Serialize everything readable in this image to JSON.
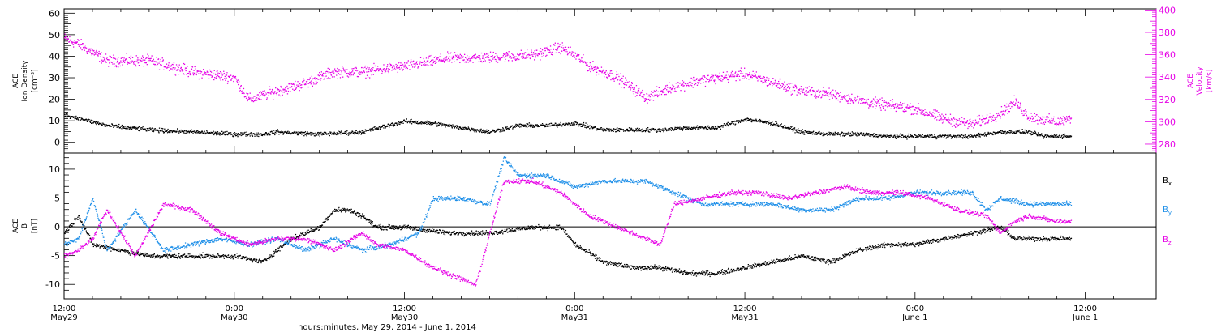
{
  "chart_data": [
    {
      "type": "scatter",
      "xlabel": "hours:minutes, May 29, 2014 - June  1, 2014",
      "x_ticks": [
        {
          "time": "12:00",
          "date": "May29",
          "hours": 0
        },
        {
          "time": "0:00",
          "date": "May30",
          "hours": 12
        },
        {
          "time": "12:00",
          "date": "May30",
          "hours": 24
        },
        {
          "time": "0:00",
          "date": "May31",
          "hours": 36
        },
        {
          "time": "12:00",
          "date": "May31",
          "hours": 48
        },
        {
          "time": "0:00",
          "date": "June 1",
          "hours": 60
        },
        {
          "time": "12:00",
          "date": "June 1",
          "hours": 72
        }
      ],
      "xlim": [
        "2014-05-29 12:00",
        "2014-06-01 17:00"
      ],
      "left_axis": {
        "label_lines": [
          "ACE",
          "Ion Density",
          "[cm⁻³]"
        ],
        "ylim": [
          -5,
          62
        ],
        "ticks": [
          0,
          10,
          20,
          30,
          40,
          50,
          60
        ],
        "color": "#000000"
      },
      "right_axis": {
        "label_lines": [
          "ACE",
          "Velocity",
          "[km/s]"
        ],
        "ylim": [
          272,
          401
        ],
        "ticks": [
          280,
          300,
          320,
          340,
          360,
          380,
          400
        ],
        "color": "#e600e6"
      },
      "series": [
        {
          "axis": "left",
          "color": "#000000",
          "points": [
            [
              0,
              13
            ],
            [
              3,
              8
            ],
            [
              6,
              6
            ],
            [
              9,
              5
            ],
            [
              12,
              4
            ],
            [
              14,
              4
            ],
            [
              15,
              5
            ],
            [
              18,
              4
            ],
            [
              21,
              5
            ],
            [
              24,
              10
            ],
            [
              26,
              9
            ],
            [
              28,
              7
            ],
            [
              30,
              5
            ],
            [
              32,
              8
            ],
            [
              34,
              8
            ],
            [
              36,
              9
            ],
            [
              38,
              6
            ],
            [
              40,
              6
            ],
            [
              42,
              6
            ],
            [
              44,
              7
            ],
            [
              46,
              7
            ],
            [
              48,
              11
            ],
            [
              50,
              9
            ],
            [
              52,
              5
            ],
            [
              54,
              4
            ],
            [
              56,
              4
            ],
            [
              58,
              3
            ],
            [
              60,
              3
            ],
            [
              62,
              3
            ],
            [
              64,
              3
            ],
            [
              66,
              5
            ],
            [
              68,
              5
            ],
            [
              69,
              3
            ],
            [
              71,
              3
            ]
          ]
        },
        {
          "axis": "right",
          "color": "#e600e6",
          "points": [
            [
              0,
              375
            ],
            [
              1,
              370
            ],
            [
              3,
              355
            ],
            [
              6,
              355
            ],
            [
              9,
              345
            ],
            [
              12,
              340
            ],
            [
              13,
              320
            ],
            [
              15,
              328
            ],
            [
              17,
              335
            ],
            [
              19,
              345
            ],
            [
              21,
              345
            ],
            [
              24,
              350
            ],
            [
              27,
              357
            ],
            [
              30,
              358
            ],
            [
              33,
              360
            ],
            [
              35,
              367
            ],
            [
              36,
              360
            ],
            [
              37,
              350
            ],
            [
              39,
              340
            ],
            [
              41,
              322
            ],
            [
              43,
              332
            ],
            [
              45,
              338
            ],
            [
              48,
              343
            ],
            [
              50,
              335
            ],
            [
              52,
              328
            ],
            [
              54,
              325
            ],
            [
              57,
              317
            ],
            [
              60,
              312
            ],
            [
              62,
              303
            ],
            [
              64,
              298
            ],
            [
              66,
              308
            ],
            [
              67,
              318
            ],
            [
              68,
              305
            ],
            [
              70,
              300
            ],
            [
              71,
              303
            ]
          ]
        }
      ]
    },
    {
      "type": "scatter",
      "xlabel": "hours:minutes, May 29, 2014 - June  1, 2014",
      "xlim": [
        "2014-05-29 12:00",
        "2014-06-01 17:00"
      ],
      "left_axis": {
        "label_lines": [
          "ACE",
          "B",
          "[nT]"
        ],
        "ylim": [
          -12.5,
          12.8
        ],
        "ticks": [
          -10,
          -5,
          0,
          5,
          10
        ],
        "zero_line": true
      },
      "legend": [
        "Bx",
        "By",
        "Bz"
      ],
      "series": [
        {
          "name": "Bx",
          "color": "#000000",
          "points": [
            [
              0,
              -1
            ],
            [
              1,
              2
            ],
            [
              2,
              -3
            ],
            [
              4,
              -4
            ],
            [
              6,
              -5
            ],
            [
              9,
              -5
            ],
            [
              12,
              -5
            ],
            [
              14,
              -6
            ],
            [
              16,
              -2
            ],
            [
              18,
              0
            ],
            [
              19,
              3
            ],
            [
              20,
              3
            ],
            [
              21,
              2
            ],
            [
              22,
              0
            ],
            [
              24,
              0
            ],
            [
              27,
              -1
            ],
            [
              30,
              -1
            ],
            [
              33,
              0
            ],
            [
              35,
              0
            ],
            [
              36,
              -3
            ],
            [
              38,
              -6
            ],
            [
              40,
              -7
            ],
            [
              42,
              -7
            ],
            [
              44,
              -8
            ],
            [
              46,
              -8
            ],
            [
              48,
              -7
            ],
            [
              50,
              -6
            ],
            [
              52,
              -5
            ],
            [
              54,
              -6
            ],
            [
              56,
              -4
            ],
            [
              58,
              -3
            ],
            [
              60,
              -3
            ],
            [
              62,
              -2
            ],
            [
              64,
              -1
            ],
            [
              66,
              0
            ],
            [
              67,
              -2
            ],
            [
              69,
              -2
            ],
            [
              71,
              -2
            ]
          ]
        },
        {
          "name": "By",
          "color": "#1e8fe8",
          "points": [
            [
              0,
              -3
            ],
            [
              1,
              -2
            ],
            [
              2,
              5
            ],
            [
              3,
              -4
            ],
            [
              5,
              3
            ],
            [
              7,
              -4
            ],
            [
              9,
              -3
            ],
            [
              11,
              -2
            ],
            [
              13,
              -3
            ],
            [
              15,
              -2
            ],
            [
              17,
              -4
            ],
            [
              19,
              -2
            ],
            [
              21,
              -4
            ],
            [
              23,
              -3
            ],
            [
              25,
              -1
            ],
            [
              26,
              5
            ],
            [
              28,
              5
            ],
            [
              30,
              4
            ],
            [
              31,
              12
            ],
            [
              32,
              9
            ],
            [
              34,
              9
            ],
            [
              36,
              7
            ],
            [
              38,
              8
            ],
            [
              40,
              8
            ],
            [
              41,
              8
            ],
            [
              43,
              6
            ],
            [
              45,
              4
            ],
            [
              47,
              4
            ],
            [
              50,
              4
            ],
            [
              52,
              3
            ],
            [
              54,
              3
            ],
            [
              56,
              5
            ],
            [
              58,
              5
            ],
            [
              60,
              6
            ],
            [
              62,
              6
            ],
            [
              64,
              6
            ],
            [
              65,
              3
            ],
            [
              66,
              5
            ],
            [
              68,
              4
            ],
            [
              70,
              4
            ],
            [
              71,
              4
            ]
          ]
        },
        {
          "name": "Bz",
          "color": "#e600e6",
          "points": [
            [
              0,
              -5
            ],
            [
              1,
              -4
            ],
            [
              2,
              -2
            ],
            [
              3,
              3
            ],
            [
              5,
              -5
            ],
            [
              7,
              4
            ],
            [
              9,
              3
            ],
            [
              11,
              -1
            ],
            [
              13,
              -3
            ],
            [
              15,
              -2
            ],
            [
              17,
              -2
            ],
            [
              19,
              -4
            ],
            [
              21,
              -1
            ],
            [
              22,
              -3
            ],
            [
              24,
              -4
            ],
            [
              26,
              -7
            ],
            [
              28,
              -9
            ],
            [
              29,
              -10
            ],
            [
              31,
              8
            ],
            [
              33,
              8
            ],
            [
              35,
              6
            ],
            [
              37,
              2
            ],
            [
              39,
              0
            ],
            [
              41,
              -2
            ],
            [
              42,
              -3
            ],
            [
              43,
              4
            ],
            [
              45,
              5
            ],
            [
              47,
              6
            ],
            [
              49,
              6
            ],
            [
              51,
              5
            ],
            [
              53,
              6
            ],
            [
              55,
              7
            ],
            [
              57,
              6
            ],
            [
              59,
              6
            ],
            [
              61,
              5
            ],
            [
              63,
              3
            ],
            [
              65,
              2
            ],
            [
              66,
              -1
            ],
            [
              67,
              1
            ],
            [
              68,
              2
            ],
            [
              70,
              1
            ],
            [
              71,
              1
            ]
          ]
        }
      ]
    }
  ]
}
